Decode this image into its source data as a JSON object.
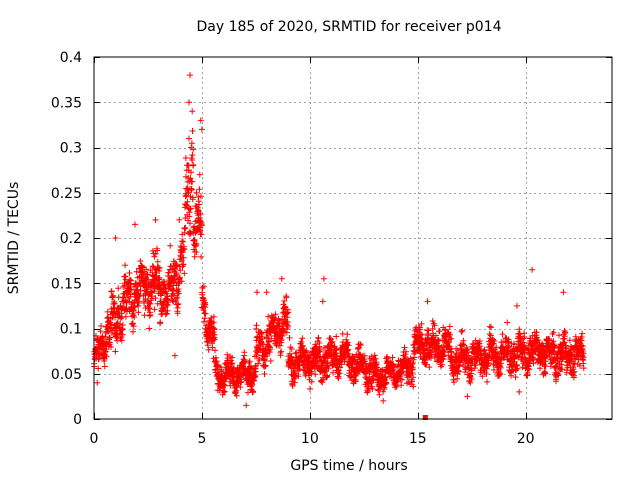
{
  "chart_data": {
    "type": "scatter",
    "title": "Day 185 of 2020, SRMTID for receiver p014",
    "xlabel": "GPS time / hours",
    "ylabel": "SRMTID / TECUs",
    "xlim": [
      0,
      24
    ],
    "ylim": [
      0,
      0.4
    ],
    "x_ticks": [
      0,
      5,
      10,
      15,
      20
    ],
    "x_tick_labels": [
      "0",
      "5",
      "10",
      "15",
      "20"
    ],
    "y_ticks": [
      0,
      0.05,
      0.1,
      0.15,
      0.2,
      0.25,
      0.3,
      0.35,
      0.4
    ],
    "y_tick_labels": [
      "0",
      "0.05",
      "0.1",
      "0.15",
      "0.2",
      "0.25",
      "0.3",
      "0.35",
      "0.4"
    ],
    "grid": true,
    "marker": "plus",
    "series_color": "#ff0000",
    "gap_marker": {
      "x": 15.35,
      "y": 0,
      "shape": "square"
    },
    "segments": [
      {
        "x": [
          0.0,
          0.5
        ],
        "y": [
          0.06,
          0.09
        ],
        "spread": 0.025
      },
      {
        "x": [
          0.5,
          1.5
        ],
        "y": [
          0.09,
          0.13
        ],
        "spread": 0.035
      },
      {
        "x": [
          1.5,
          2.5
        ],
        "y": [
          0.13,
          0.15
        ],
        "spread": 0.035
      },
      {
        "x": [
          2.5,
          3.5
        ],
        "y": [
          0.15,
          0.14
        ],
        "spread": 0.04
      },
      {
        "x": [
          3.5,
          4.2
        ],
        "y": [
          0.14,
          0.18
        ],
        "spread": 0.04
      },
      {
        "x": [
          4.2,
          4.6
        ],
        "y": [
          0.2,
          0.3
        ],
        "spread": 0.06
      },
      {
        "x": [
          4.6,
          5.0
        ],
        "y": [
          0.22,
          0.2
        ],
        "spread": 0.05
      },
      {
        "x": [
          5.0,
          5.6
        ],
        "y": [
          0.13,
          0.08
        ],
        "spread": 0.03
      },
      {
        "x": [
          5.6,
          7.5
        ],
        "y": [
          0.05,
          0.05
        ],
        "spread": 0.02
      },
      {
        "x": [
          7.5,
          9.0
        ],
        "y": [
          0.07,
          0.11
        ],
        "spread": 0.03
      },
      {
        "x": [
          9.0,
          11.5
        ],
        "y": [
          0.06,
          0.07
        ],
        "spread": 0.025
      },
      {
        "x": [
          11.5,
          13.0
        ],
        "y": [
          0.07,
          0.05
        ],
        "spread": 0.025
      },
      {
        "x": [
          13.0,
          14.8
        ],
        "y": [
          0.045,
          0.06
        ],
        "spread": 0.02
      },
      {
        "x": [
          14.8,
          16.5
        ],
        "y": [
          0.08,
          0.08
        ],
        "spread": 0.025
      },
      {
        "x": [
          16.5,
          18.5
        ],
        "y": [
          0.065,
          0.07
        ],
        "spread": 0.025
      },
      {
        "x": [
          18.5,
          21.0
        ],
        "y": [
          0.07,
          0.075
        ],
        "spread": 0.025
      },
      {
        "x": [
          21.0,
          22.7
        ],
        "y": [
          0.07,
          0.07
        ],
        "spread": 0.025
      }
    ],
    "outliers": [
      {
        "x": 4.45,
        "y": 0.38
      },
      {
        "x": 4.4,
        "y": 0.35
      },
      {
        "x": 4.55,
        "y": 0.34
      },
      {
        "x": 4.95,
        "y": 0.33
      },
      {
        "x": 5.0,
        "y": 0.32
      },
      {
        "x": 4.5,
        "y": 0.3
      },
      {
        "x": 4.4,
        "y": 0.31
      },
      {
        "x": 4.6,
        "y": 0.28
      },
      {
        "x": 4.9,
        "y": 0.27
      },
      {
        "x": 4.75,
        "y": 0.25
      },
      {
        "x": 4.85,
        "y": 0.23
      },
      {
        "x": 3.95,
        "y": 0.22
      },
      {
        "x": 2.85,
        "y": 0.22
      },
      {
        "x": 1.9,
        "y": 0.215
      },
      {
        "x": 1.0,
        "y": 0.2
      },
      {
        "x": 20.3,
        "y": 0.165
      },
      {
        "x": 10.65,
        "y": 0.155
      },
      {
        "x": 8.7,
        "y": 0.155
      },
      {
        "x": 8.0,
        "y": 0.14
      },
      {
        "x": 7.55,
        "y": 0.14
      },
      {
        "x": 21.75,
        "y": 0.14
      },
      {
        "x": 10.6,
        "y": 0.13
      },
      {
        "x": 15.45,
        "y": 0.13
      },
      {
        "x": 19.6,
        "y": 0.125
      },
      {
        "x": 0.15,
        "y": 0.04
      },
      {
        "x": 3.75,
        "y": 0.07
      },
      {
        "x": 7.05,
        "y": 0.015
      },
      {
        "x": 13.4,
        "y": 0.02
      },
      {
        "x": 17.3,
        "y": 0.025
      },
      {
        "x": 19.7,
        "y": 0.03
      }
    ]
  }
}
